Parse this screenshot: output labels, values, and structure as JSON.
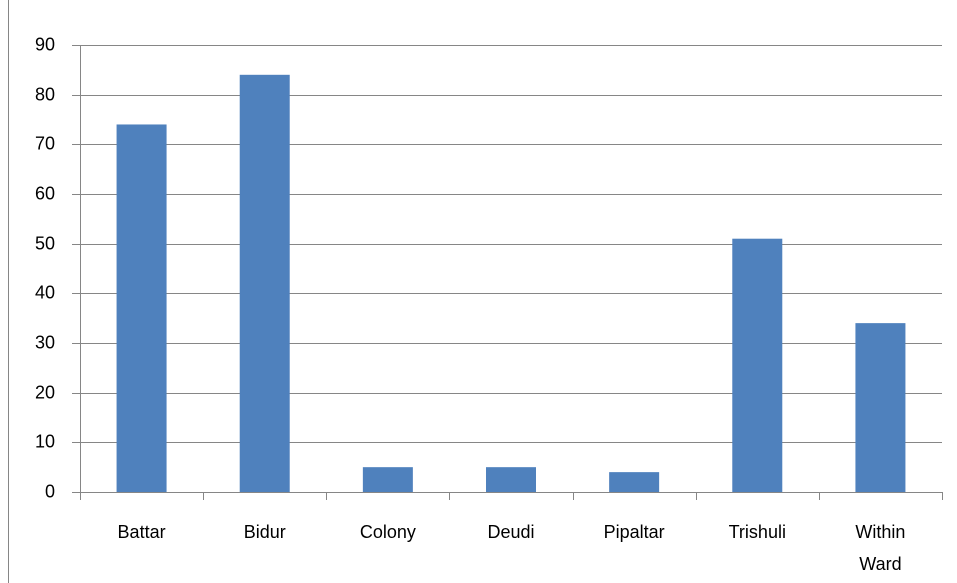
{
  "chart_data": {
    "type": "bar",
    "categories": [
      "Battar",
      "Bidur",
      "Colony",
      "Deudi",
      "Pipaltar",
      "Trishuli",
      "Within Ward"
    ],
    "values": [
      74,
      84,
      5,
      5,
      4,
      51,
      34
    ],
    "color": "#4f81bd",
    "ylim": [
      0,
      90
    ],
    "yticks": [
      0,
      10,
      20,
      30,
      40,
      50,
      60,
      70,
      80,
      90
    ],
    "grid": true
  }
}
